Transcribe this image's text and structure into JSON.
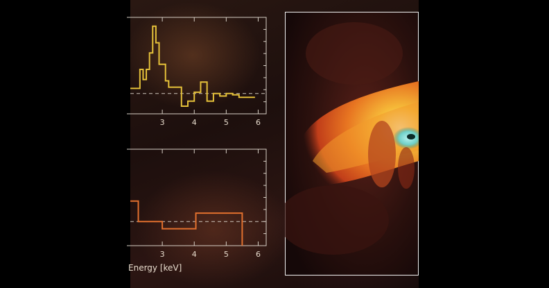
{
  "chart_data": [
    {
      "type": "line",
      "style": "step",
      "color": "#e6c23a",
      "x": [
        2.0,
        2.15,
        2.3,
        2.4,
        2.5,
        2.6,
        2.7,
        2.8,
        2.9,
        3.1,
        3.2,
        3.4,
        3.6,
        3.8,
        4.0,
        4.2,
        4.4,
        4.6,
        4.8,
        5.0,
        5.2,
        5.4,
        5.6,
        5.8
      ],
      "y": [
        0.2,
        0.2,
        0.95,
        0.55,
        0.95,
        1.6,
        2.65,
        2.0,
        1.15,
        0.5,
        0.25,
        0.25,
        -0.5,
        -0.3,
        0.05,
        0.45,
        -0.3,
        0.0,
        -0.1,
        0.0,
        -0.05,
        -0.15,
        -0.15,
        -0.15
      ],
      "baseline": 0,
      "xlim": [
        2.0,
        6.25
      ],
      "ylim": [
        -0.8,
        3.0
      ],
      "xticks": [
        "3",
        "4",
        "5",
        "6"
      ],
      "xlabel": ""
    },
    {
      "type": "line",
      "style": "step",
      "color": "#e2702e",
      "x": [
        2.0,
        2.25,
        3.0,
        4.05,
        5.0,
        5.5
      ],
      "y": [
        0.85,
        0.0,
        -0.3,
        0.35,
        0.35,
        -1.0
      ],
      "baseline": 0,
      "xlim": [
        2.0,
        6.25
      ],
      "ylim": [
        -1.0,
        3.0
      ],
      "xticks": [
        "3",
        "4",
        "5",
        "6"
      ],
      "xlabel": "Energy [keV]"
    }
  ]
}
